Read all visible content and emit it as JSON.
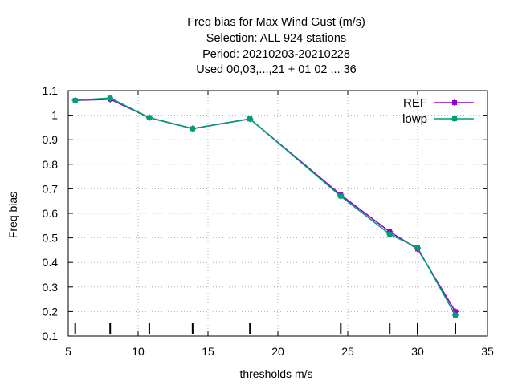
{
  "chart_data": {
    "type": "line",
    "title_lines": [
      "Freq bias  for Max Wind Gust (m/s)",
      "Selection: ALL    924 stations",
      "Period: 20210203-20210228",
      "Used  00,03,...,21  + 01 02 ... 36"
    ],
    "xlabel": "thresholds m/s",
    "ylabel": "Freq bias",
    "xlim": [
      5,
      35
    ],
    "ylim": [
      0.1,
      1.1
    ],
    "xticks": [
      5,
      10,
      15,
      20,
      25,
      30,
      35
    ],
    "yticks": [
      0.1,
      0.2,
      0.3,
      0.4,
      0.5,
      0.6,
      0.7,
      0.8,
      0.9,
      1,
      1.1
    ],
    "grid": true,
    "legend_position": "top-right",
    "threshold_markers": [
      5.5,
      8,
      10.8,
      13.9,
      18,
      24.5,
      28,
      30,
      32.7
    ],
    "series": [
      {
        "name": "REF",
        "color": "#9400d3",
        "x": [
          5.5,
          8,
          10.8,
          13.9,
          18,
          24.5,
          28,
          30,
          32.7
        ],
        "y": [
          1.06,
          1.065,
          0.99,
          0.945,
          0.985,
          0.675,
          0.525,
          0.455,
          0.2
        ]
      },
      {
        "name": "lowp",
        "color": "#009e73",
        "x": [
          5.5,
          8,
          10.8,
          13.9,
          18,
          24.5,
          28,
          30,
          32.7
        ],
        "y": [
          1.06,
          1.07,
          0.99,
          0.945,
          0.985,
          0.67,
          0.515,
          0.46,
          0.185
        ]
      }
    ]
  }
}
